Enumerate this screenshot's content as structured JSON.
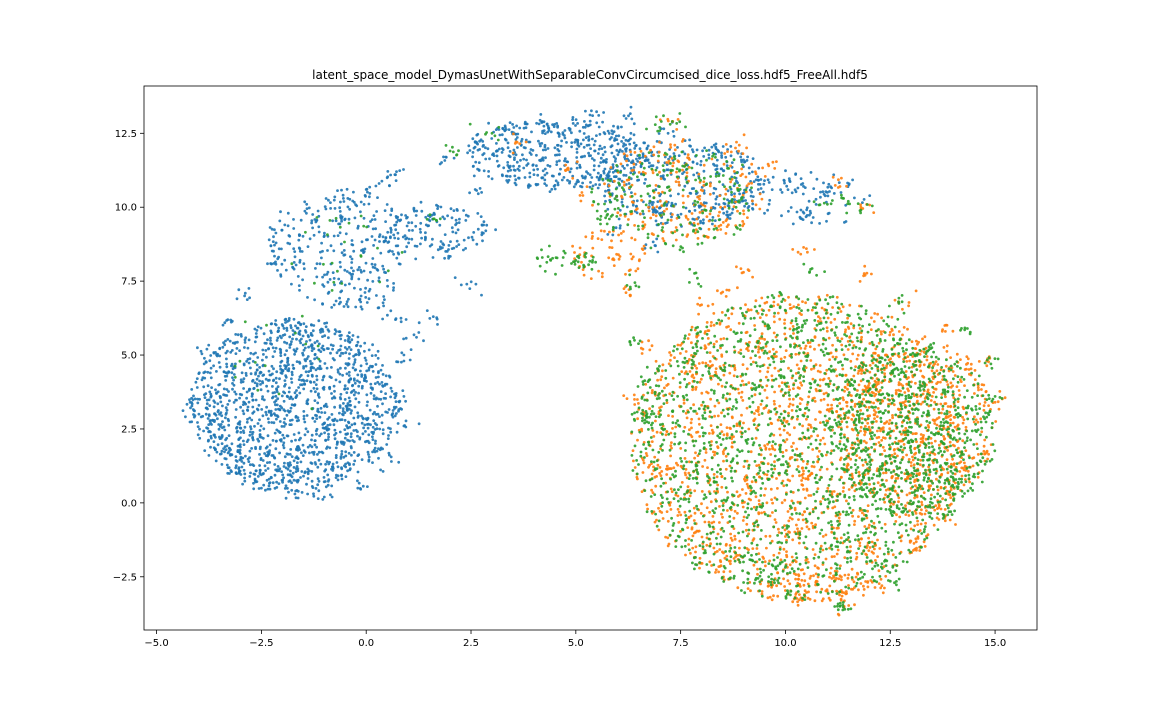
{
  "chart_data": {
    "type": "scatter",
    "title": "latent_space_model_DymasUnetWithSeparableConvCircumcised_dice_loss.hdf5_FreeAll.hdf5",
    "xlabel": "",
    "ylabel": "",
    "xlim": [
      -5.3,
      16.0
    ],
    "ylim": [
      -4.3,
      14.1
    ],
    "xticks": [
      -5.0,
      -2.5,
      0.0,
      2.5,
      5.0,
      7.5,
      10.0,
      12.5,
      15.0
    ],
    "xtick_labels": [
      "−5.0",
      "−2.5",
      "0.0",
      "2.5",
      "5.0",
      "7.5",
      "10.0",
      "12.5",
      "15.0"
    ],
    "yticks": [
      -2.5,
      0.0,
      2.5,
      5.0,
      7.5,
      10.0,
      12.5
    ],
    "ytick_labels": [
      "−2.5",
      "0.0",
      "2.5",
      "5.0",
      "7.5",
      "10.0",
      "12.5"
    ],
    "grid": false,
    "legend": "none",
    "colors": [
      "#1f77b4",
      "#ff7f0e",
      "#2ca02c"
    ],
    "series": [
      {
        "color": "#1f77b4",
        "clusters": [
          {
            "cx": -1.7,
            "cy": 3.3,
            "rx": 2.5,
            "ry": 2.9,
            "n": 1400
          },
          {
            "cx": -0.6,
            "cy": 8.6,
            "rx": 1.8,
            "ry": 2.0,
            "n": 300
          },
          {
            "cx": 1.7,
            "cy": 9.2,
            "rx": 1.2,
            "ry": 1.0,
            "n": 120
          },
          {
            "cx": 4.6,
            "cy": 11.8,
            "rx": 2.2,
            "ry": 1.2,
            "n": 450
          },
          {
            "cx": 7.5,
            "cy": 10.8,
            "rx": 2.0,
            "ry": 1.5,
            "n": 350
          },
          {
            "cx": 10.5,
            "cy": 10.3,
            "rx": 1.5,
            "ry": 1.0,
            "n": 80
          }
        ],
        "points": [
          [
            -4.2,
            3.4
          ],
          [
            -4.1,
            2.9
          ],
          [
            -3.6,
            1.8
          ],
          [
            -3.1,
            1.0
          ],
          [
            -2.5,
            0.5
          ],
          [
            -1.7,
            0.3
          ],
          [
            -1.0,
            0.2
          ],
          [
            -0.2,
            0.5
          ],
          [
            0.6,
            1.4
          ],
          [
            0.9,
            2.6
          ],
          [
            0.9,
            3.6
          ],
          [
            0.9,
            4.8
          ],
          [
            0.7,
            6.2
          ],
          [
            0.1,
            7.8
          ],
          [
            -0.5,
            9.6
          ],
          [
            0.0,
            10.6
          ],
          [
            0.5,
            11.0
          ],
          [
            0.7,
            11.1
          ],
          [
            -1.2,
            9.5
          ],
          [
            -2.2,
            8.1
          ],
          [
            -2.9,
            7.0
          ],
          [
            -3.3,
            6.2
          ],
          [
            -3.8,
            5.2
          ],
          [
            -1.5,
            1.6
          ],
          [
            -0.5,
            3.5
          ],
          [
            -2.6,
            4.5
          ],
          [
            -3.5,
            3.0
          ],
          [
            -1.8,
            6.0
          ],
          [
            -0.4,
            5.6
          ],
          [
            0.3,
            6.6
          ],
          [
            2.4,
            7.4
          ],
          [
            2.8,
            9.4
          ],
          [
            2.6,
            10.6
          ],
          [
            1.9,
            11.7
          ],
          [
            2.6,
            12.2
          ],
          [
            3.3,
            12.6
          ],
          [
            4.2,
            12.9
          ],
          [
            5.4,
            13.1
          ],
          [
            6.2,
            13.0
          ],
          [
            5.8,
            11.2
          ],
          [
            7.2,
            12.5
          ],
          [
            8.3,
            12.1
          ],
          [
            9.0,
            11.6
          ],
          [
            9.5,
            10.9
          ],
          [
            8.7,
            10.2
          ],
          [
            6.9,
            9.9
          ],
          [
            5.9,
            9.3
          ],
          [
            6.9,
            8.7
          ],
          [
            7.9,
            9.6
          ],
          [
            10.1,
            10.9
          ],
          [
            11.0,
            10.5
          ],
          [
            10.6,
            9.8
          ],
          [
            1.2,
            5.6
          ],
          [
            1.6,
            6.3
          ],
          [
            0.4,
            9.0
          ],
          [
            -3.0,
            2.2
          ]
        ]
      },
      {
        "color": "#ff7f0e",
        "clusters": [
          {
            "cx": 10.3,
            "cy": 1.9,
            "rx": 4.0,
            "ry": 5.2,
            "n": 1600
          },
          {
            "cx": 13.1,
            "cy": 2.6,
            "rx": 1.9,
            "ry": 3.0,
            "n": 450
          },
          {
            "cx": 7.6,
            "cy": 10.6,
            "rx": 1.9,
            "ry": 1.8,
            "n": 220
          },
          {
            "cx": 5.8,
            "cy": 8.4,
            "rx": 0.9,
            "ry": 0.9,
            "n": 60
          },
          {
            "cx": 10.9,
            "cy": -2.8,
            "rx": 1.2,
            "ry": 0.6,
            "n": 80
          }
        ],
        "points": [
          [
            7.3,
            12.9
          ],
          [
            8.9,
            12.1
          ],
          [
            9.6,
            11.4
          ],
          [
            11.3,
            10.7
          ],
          [
            11.8,
            10.0
          ],
          [
            11.9,
            7.7
          ],
          [
            12.7,
            6.8
          ],
          [
            13.8,
            6.0
          ],
          [
            14.8,
            4.8
          ],
          [
            14.6,
            3.9
          ],
          [
            15.0,
            3.4
          ],
          [
            14.3,
            1.2
          ],
          [
            13.8,
            -0.5
          ],
          [
            13.2,
            -1.5
          ],
          [
            12.3,
            -2.8
          ],
          [
            11.4,
            -3.5
          ],
          [
            10.4,
            -3.3
          ],
          [
            9.6,
            -2.8
          ],
          [
            8.6,
            -1.8
          ],
          [
            7.7,
            -0.5
          ],
          [
            7.0,
            1.0
          ],
          [
            6.4,
            3.5
          ],
          [
            6.6,
            5.2
          ],
          [
            6.3,
            7.0
          ],
          [
            8.0,
            6.7
          ],
          [
            9.0,
            7.8
          ],
          [
            10.5,
            8.6
          ],
          [
            11.8,
            5.5
          ],
          [
            12.9,
            4.2
          ],
          [
            11.3,
            0.3
          ],
          [
            9.0,
            2.7
          ],
          [
            8.2,
            4.6
          ],
          [
            4.8,
            11.3
          ],
          [
            3.6,
            12.2
          ],
          [
            5.1,
            10.4
          ],
          [
            12.0,
            3.7
          ],
          [
            14.0,
            2.7
          ],
          [
            10.1,
            -1.0
          ],
          [
            8.6,
            7.2
          ],
          [
            7.6,
            11.4
          ]
        ]
      },
      {
        "color": "#2ca02c",
        "clusters": [
          {
            "cx": 10.3,
            "cy": 1.9,
            "rx": 4.0,
            "ry": 5.2,
            "n": 1700
          },
          {
            "cx": 13.1,
            "cy": 2.4,
            "rx": 1.9,
            "ry": 3.0,
            "n": 450
          },
          {
            "cx": 7.4,
            "cy": 10.3,
            "rx": 2.0,
            "ry": 1.8,
            "n": 200
          },
          {
            "cx": -0.5,
            "cy": 8.5,
            "rx": 1.3,
            "ry": 1.5,
            "n": 25
          },
          {
            "cx": -1.8,
            "cy": 5.0,
            "rx": 1.6,
            "ry": 2.0,
            "n": 15
          }
        ],
        "points": [
          [
            4.2,
            8.3
          ],
          [
            4.4,
            8.2
          ],
          [
            4.7,
            8.3
          ],
          [
            5.0,
            8.2
          ],
          [
            5.2,
            8.0
          ],
          [
            5.4,
            8.2
          ],
          [
            6.7,
            2.9
          ],
          [
            6.8,
            3.0
          ],
          [
            6.6,
            3.0
          ],
          [
            11.0,
            10.1
          ],
          [
            11.5,
            10.2
          ],
          [
            11.8,
            9.9
          ],
          [
            7.3,
            12.9
          ],
          [
            7.0,
            12.7
          ],
          [
            15.0,
            3.6
          ],
          [
            14.8,
            2.9
          ],
          [
            11.5,
            -3.6
          ],
          [
            11.3,
            -3.5
          ],
          [
            9.6,
            -2.5
          ],
          [
            13.9,
            -0.3
          ],
          [
            14.2,
            0.7
          ],
          [
            12.7,
            6.8
          ],
          [
            14.2,
            5.9
          ],
          [
            14.9,
            4.7
          ],
          [
            6.3,
            7.3
          ],
          [
            6.4,
            5.5
          ],
          [
            6.6,
            4.1
          ],
          [
            9.0,
            -2.0
          ],
          [
            12.6,
            -2.7
          ],
          [
            8.6,
            0.1
          ],
          [
            1.6,
            9.6
          ],
          [
            2.0,
            11.9
          ],
          [
            3.0,
            12.5
          ],
          [
            5.8,
            9.6
          ],
          [
            13.3,
            5.2
          ],
          [
            7.9,
            7.6
          ],
          [
            10.6,
            7.9
          ],
          [
            12.4,
            1.1
          ],
          [
            9.9,
            4.3
          ],
          [
            11.0,
            2.7
          ]
        ]
      }
    ]
  }
}
